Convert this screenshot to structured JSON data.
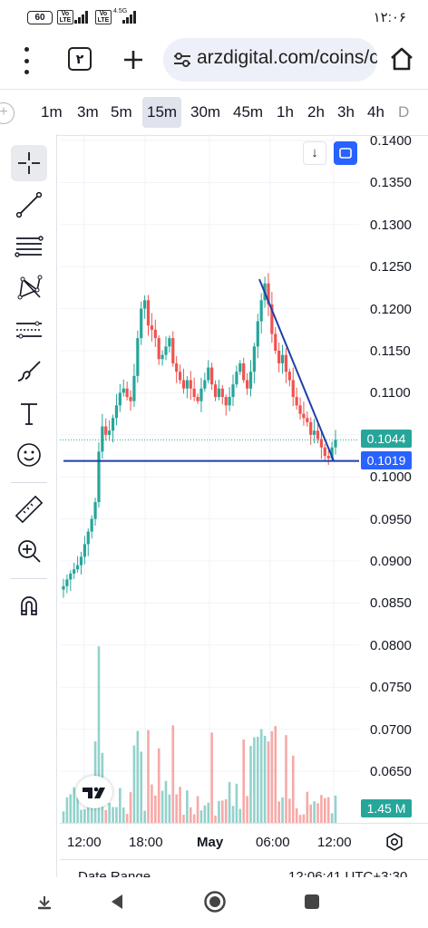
{
  "status_bar": {
    "battery": "60",
    "net1": "Vo LTE",
    "net2": "Vo LTE",
    "net3": "4.5G",
    "clock": "۱۲:۰۶"
  },
  "browser": {
    "tab_count": "۲",
    "url": "arzdigital.com/coins/c",
    "icons": [
      "menu-kebab-icon",
      "tabs-icon",
      "new-tab-icon",
      "site-info-icon",
      "home-icon"
    ]
  },
  "intervals": {
    "items": [
      "1m",
      "3m",
      "5m",
      "15m",
      "30m",
      "45m",
      "1h",
      "2h",
      "3h",
      "4h",
      "D"
    ],
    "selected": "15m"
  },
  "tools": [
    "crosshair-icon",
    "trend-line-icon",
    "fib-retracement-icon",
    "pattern-icon",
    "prediction-icon",
    "brush-icon",
    "text-icon",
    "emoji-icon",
    "ruler-icon",
    "zoom-in-icon",
    "magnet-icon"
  ],
  "chart": {
    "price_labels": [
      "0.1400",
      "0.1350",
      "0.1300",
      "0.1250",
      "0.1200",
      "0.1150",
      "0.1100",
      "0.1050",
      "0.1000",
      "0.0950",
      "0.0900",
      "0.0850",
      "0.0800",
      "0.0750",
      "0.0700",
      "0.0650"
    ],
    "time_labels": [
      "12:00",
      "18:00",
      "May",
      "06:00",
      "12:00"
    ],
    "last_price": "0.1044",
    "horizontal_line_price": "0.1019",
    "volume_label": "1.45 M",
    "colors": {
      "up": "#26a69a",
      "down": "#ef5350",
      "line": "#1e3fa8",
      "accent": "#2962ff"
    }
  },
  "chart_data": {
    "type": "candlestick",
    "ylim": [
      0.0634,
      0.1413
    ],
    "x_ticks": [
      "12:00",
      "18:00",
      "May",
      "06:00",
      "12:00"
    ],
    "approx_closes": [
      0.087,
      0.0878,
      0.0885,
      0.089,
      0.0895,
      0.0905,
      0.092,
      0.0935,
      0.095,
      0.097,
      0.103,
      0.106,
      0.105,
      0.1055,
      0.107,
      0.1085,
      0.11,
      0.1105,
      0.1095,
      0.109,
      0.112,
      0.1165,
      0.12,
      0.121,
      0.118,
      0.1175,
      0.1165,
      0.114,
      0.1145,
      0.1155,
      0.1165,
      0.1135,
      0.1125,
      0.1115,
      0.1105,
      0.1115,
      0.1105,
      0.1095,
      0.109,
      0.1105,
      0.1115,
      0.113,
      0.111,
      0.1095,
      0.1105,
      0.1095,
      0.1085,
      0.1095,
      0.111,
      0.1125,
      0.1135,
      0.1115,
      0.1105,
      0.1125,
      0.1155,
      0.1185,
      0.121,
      0.123,
      0.1205,
      0.117,
      0.115,
      0.1135,
      0.1145,
      0.1125,
      0.1115,
      0.1095,
      0.1085,
      0.1075,
      0.107,
      0.1065,
      0.105,
      0.1055,
      0.1045,
      0.1035,
      0.1025,
      0.1022,
      0.1035,
      0.1044
    ],
    "last_price": 0.1044,
    "support_line": 0.1019,
    "trend_line": {
      "from": 0.1235,
      "to": 0.1019
    }
  },
  "date_range": {
    "label": "Date Range",
    "time": "12:06:41 UTC+3:30"
  },
  "nav": [
    "assistant-icon",
    "back-icon",
    "home-circle-icon",
    "recents-icon"
  ]
}
